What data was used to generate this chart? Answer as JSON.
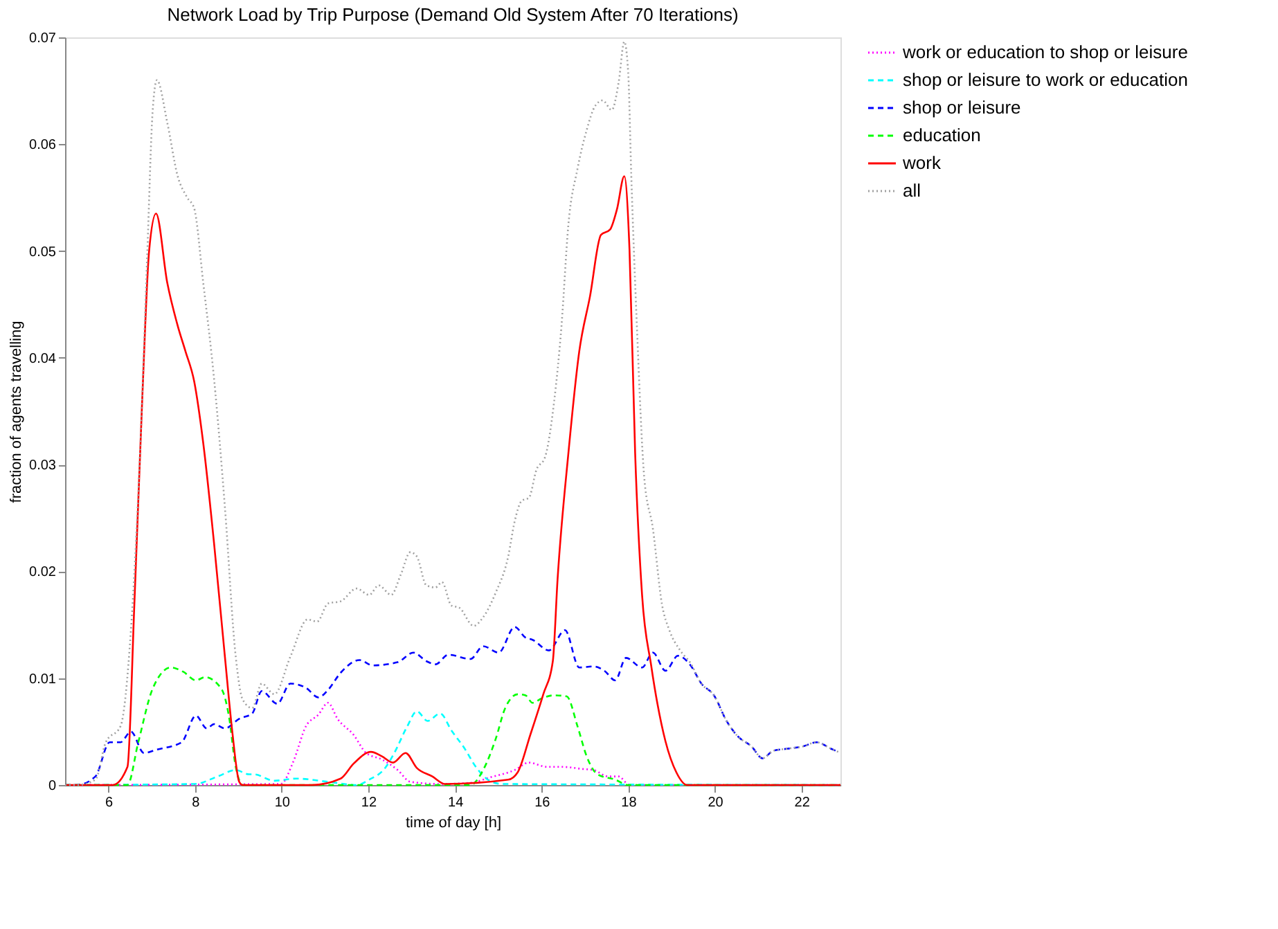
{
  "chart_data": {
    "type": "line",
    "title": "Network Load by Trip Purpose (Demand Old System After 70 Iterations)",
    "xlabel": "time of day [h]",
    "ylabel": "fraction of agents travelling",
    "xlim": [
      5,
      22.9
    ],
    "ylim": [
      0,
      0.07
    ],
    "xticks": [
      6,
      8,
      10,
      12,
      14,
      16,
      18,
      20,
      22
    ],
    "yticks": [
      0,
      0.01,
      0.02,
      0.03,
      0.04,
      0.05,
      0.06,
      0.07
    ],
    "grid": false,
    "legend": "top right",
    "marker": "none",
    "series": [
      {
        "name": "work or education to shop or leisure",
        "color": "#ff00ff",
        "line_style": "dotted",
        "x": [
          5,
          9.98,
          10.27,
          10.56,
          10.85,
          11.07,
          11.29,
          11.66,
          11.95,
          12.31,
          12.68,
          12.97,
          13.63,
          14.36,
          14.8,
          15.38,
          15.71,
          16.12,
          16.46,
          16.95,
          17.2,
          17.54,
          17.78,
          18.03,
          22.9
        ],
        "values": [
          0,
          0.0001,
          0.0022,
          0.0055,
          0.0066,
          0.0077,
          0.0062,
          0.0047,
          0.003,
          0.0024,
          0.0014,
          0.0003,
          0.0001,
          0.0002,
          0.0007,
          0.0014,
          0.0021,
          0.0017,
          0.0017,
          0.0015,
          0.0014,
          0.0008,
          0.0008,
          0,
          0
        ]
      },
      {
        "name": "shop or leisure to work or education",
        "color": "#00ffff",
        "line_style": "dashed",
        "x": [
          5,
          8.0,
          8.52,
          8.94,
          9.25,
          9.36,
          9.83,
          10.34,
          11.07,
          11.73,
          12.02,
          12.39,
          12.6,
          12.9,
          13.12,
          13.37,
          13.66,
          13.92,
          14.21,
          14.5,
          14.8,
          15.09,
          22.9
        ],
        "values": [
          0,
          0.0001,
          0.0008,
          0.0014,
          0.001,
          0.001,
          0.0004,
          0.0006,
          0.0003,
          0,
          0.0005,
          0.0016,
          0.003,
          0.0055,
          0.0069,
          0.006,
          0.0067,
          0.0051,
          0.0035,
          0.0016,
          0.0004,
          0.0001,
          0
        ]
      },
      {
        "name": "shop or leisure",
        "color": "#0000ff",
        "line_style": "dashed",
        "x": [
          5,
          5.27,
          5.7,
          6.03,
          6.28,
          6.52,
          6.82,
          7.1,
          7.69,
          8.02,
          8.27,
          8.44,
          8.69,
          9.02,
          9.32,
          9.54,
          9.9,
          10.2,
          10.56,
          10.85,
          11.07,
          11.36,
          11.8,
          12.1,
          12.68,
          13.04,
          13.34,
          13.55,
          13.85,
          14.36,
          14.65,
          15.01,
          15.38,
          15.63,
          15.79,
          16.17,
          16.54,
          16.87,
          17.2,
          17.45,
          17.7,
          17.95,
          18.32,
          18.57,
          18.86,
          19.15,
          19.44,
          19.69,
          19.98,
          20.27,
          20.52,
          20.85,
          21.1,
          21.35,
          21.68,
          22.02,
          22.35,
          22.68,
          22.85
        ],
        "values": [
          0,
          0,
          0.0008,
          0.004,
          0.004,
          0.005,
          0.003,
          0.0033,
          0.004,
          0.0065,
          0.0053,
          0.0057,
          0.0053,
          0.0062,
          0.0067,
          0.0088,
          0.0076,
          0.0095,
          0.0091,
          0.0082,
          0.0089,
          0.0105,
          0.0117,
          0.0112,
          0.0115,
          0.0124,
          0.0116,
          0.0113,
          0.0122,
          0.0118,
          0.013,
          0.0124,
          0.0148,
          0.0138,
          0.0136,
          0.0126,
          0.0145,
          0.011,
          0.0111,
          0.0107,
          0.0098,
          0.0119,
          0.011,
          0.0124,
          0.0107,
          0.0121,
          0.0112,
          0.0095,
          0.0084,
          0.006,
          0.0046,
          0.0036,
          0.0025,
          0.0032,
          0.0034,
          0.0036,
          0.004,
          0.0034,
          0.0031
        ]
      },
      {
        "name": "education",
        "color": "#00ff00",
        "line_style": "dashed",
        "x": [
          5,
          6.44,
          6.69,
          7.02,
          7.44,
          7.73,
          8.02,
          8.23,
          8.61,
          8.78,
          8.94,
          9.1,
          14.36,
          14.65,
          14.94,
          15.16,
          15.45,
          15.63,
          15.79,
          16.0,
          16.29,
          16.58,
          16.83,
          17.04,
          17.29,
          17.7,
          18.0,
          22.9
        ],
        "values": [
          0,
          0,
          0.004,
          0.009,
          0.011,
          0.0106,
          0.0098,
          0.0101,
          0.009,
          0.0065,
          0.0017,
          0,
          0,
          0.0014,
          0.0043,
          0.0072,
          0.0085,
          0.0084,
          0.0077,
          0.0081,
          0.0084,
          0.0083,
          0.0055,
          0.0027,
          0.001,
          0.0005,
          0,
          0
        ]
      },
      {
        "name": "work",
        "color": "#ff0000",
        "line_style": "solid",
        "x": [
          5,
          6.1,
          6.44,
          6.6,
          6.78,
          6.94,
          7.1,
          7.36,
          7.6,
          7.78,
          7.98,
          8.19,
          8.44,
          8.69,
          8.86,
          9.02,
          9.1,
          10.7,
          11.36,
          11.66,
          12.06,
          12.31,
          12.57,
          12.86,
          13.12,
          13.48,
          13.77,
          15.23,
          15.45,
          15.74,
          16.04,
          16.26,
          16.37,
          16.62,
          16.87,
          17.12,
          17.37,
          17.58,
          17.74,
          17.91,
          18.03,
          18.16,
          18.32,
          18.53,
          18.86,
          19.11,
          19.36,
          22.9
        ],
        "values": [
          0,
          0,
          0.0017,
          0.017,
          0.036,
          0.05,
          0.0535,
          0.047,
          0.043,
          0.0406,
          0.0378,
          0.032,
          0.0226,
          0.012,
          0.005,
          0.0003,
          0,
          0,
          0.0006,
          0.002,
          0.0031,
          0.0027,
          0.0021,
          0.003,
          0.0016,
          0.0008,
          0.0001,
          0.0005,
          0.0012,
          0.0047,
          0.0085,
          0.0116,
          0.0193,
          0.0311,
          0.0406,
          0.0458,
          0.0515,
          0.052,
          0.0539,
          0.057,
          0.0501,
          0.0311,
          0.0178,
          0.0112,
          0.0041,
          0.0012,
          0,
          0
        ]
      },
      {
        "name": "all",
        "color": "#a0a0a0",
        "line_style": "dotted",
        "x": [
          5,
          5.27,
          5.7,
          5.94,
          6.28,
          6.52,
          6.73,
          6.9,
          7.02,
          7.12,
          7.36,
          7.6,
          7.82,
          7.98,
          8.19,
          8.44,
          8.69,
          8.94,
          9.1,
          9.32,
          9.54,
          9.83,
          10.2,
          10.6,
          10.82,
          11.07,
          11.36,
          11.73,
          12.02,
          12.24,
          12.53,
          12.75,
          12.97,
          13.12,
          13.34,
          13.55,
          13.7,
          13.92,
          14.1,
          14.43,
          14.65,
          14.94,
          15.23,
          15.38,
          15.54,
          15.71,
          15.88,
          16.08,
          16.29,
          16.46,
          16.62,
          16.83,
          17.04,
          17.24,
          17.41,
          17.62,
          17.78,
          17.91,
          18.0,
          18.07,
          18.2,
          18.37,
          18.57,
          18.78,
          18.95,
          19.2,
          19.44,
          19.69,
          19.98,
          20.27,
          20.52,
          20.85,
          21.1,
          21.35,
          21.68,
          22.02,
          22.35,
          22.68,
          22.85
        ],
        "values": [
          0,
          0,
          0.0005,
          0.004,
          0.0055,
          0.0145,
          0.031,
          0.05,
          0.063,
          0.066,
          0.062,
          0.057,
          0.055,
          0.054,
          0.047,
          0.038,
          0.026,
          0.012,
          0.008,
          0.0072,
          0.0095,
          0.0085,
          0.012,
          0.0155,
          0.0153,
          0.017,
          0.0172,
          0.0184,
          0.0178,
          0.0187,
          0.0178,
          0.0197,
          0.0218,
          0.0214,
          0.0187,
          0.0185,
          0.019,
          0.0168,
          0.0166,
          0.0149,
          0.0157,
          0.018,
          0.0214,
          0.0247,
          0.0266,
          0.0269,
          0.0295,
          0.0307,
          0.0359,
          0.043,
          0.0525,
          0.0577,
          0.0613,
          0.0636,
          0.0641,
          0.0632,
          0.0658,
          0.0696,
          0.0667,
          0.0572,
          0.043,
          0.0288,
          0.024,
          0.0169,
          0.0145,
          0.0126,
          0.0114,
          0.0095,
          0.0084,
          0.006,
          0.0046,
          0.0036,
          0.0025,
          0.0032,
          0.0034,
          0.0036,
          0.004,
          0.0034,
          0.0031
        ]
      }
    ]
  }
}
